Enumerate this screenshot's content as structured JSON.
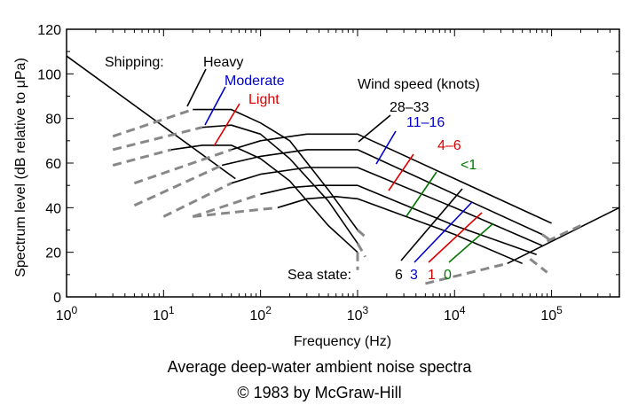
{
  "chart_data": {
    "type": "line",
    "title": "Average deep-water ambient noise spectra",
    "subtitle": "© 1983 by McGraw-Hill",
    "xlabel": "Frequency (Hz)",
    "ylabel": "Spectrum level (dB relative to μPa)",
    "x_scale": "log",
    "xlim": [
      1,
      500000
    ],
    "ylim": [
      0,
      120
    ],
    "x_ticks": [
      1,
      10,
      100,
      1000,
      10000,
      100000
    ],
    "x_tick_labels": [
      {
        "base": "10",
        "exp": "0"
      },
      {
        "base": "10",
        "exp": "1"
      },
      {
        "base": "10",
        "exp": "2"
      },
      {
        "base": "10",
        "exp": "3"
      },
      {
        "base": "10",
        "exp": "4"
      },
      {
        "base": "10",
        "exp": "5"
      }
    ],
    "y_ticks": [
      0,
      20,
      40,
      60,
      80,
      100,
      120
    ],
    "grid": false,
    "series": [
      {
        "name": "Heavy",
        "style": "solid",
        "color": "#000000",
        "x": [
          20,
          50,
          100,
          200,
          500,
          1000
        ],
        "y": [
          84,
          84,
          78,
          70,
          48,
          30
        ]
      },
      {
        "name": "Moderate",
        "style": "solid",
        "color": "#000000",
        "x": [
          25,
          50,
          100,
          200,
          500,
          1000
        ],
        "y": [
          76,
          77,
          73,
          62,
          43,
          24
        ]
      },
      {
        "name": "Light",
        "style": "solid",
        "color": "#000000",
        "x": [
          12,
          25,
          50,
          100,
          200,
          500,
          1000
        ],
        "y": [
          66,
          68,
          68,
          62,
          52,
          32,
          20
        ]
      },
      {
        "name": "28–33",
        "style": "solid",
        "color": "#000000",
        "x": [
          50,
          100,
          300,
          1000,
          10000,
          100000
        ],
        "y": [
          66,
          70,
          73,
          73,
          53,
          33
        ]
      },
      {
        "name": "11–16",
        "style": "solid",
        "color": "#000000",
        "x": [
          40,
          100,
          300,
          1000,
          10000,
          80000
        ],
        "y": [
          59,
          63,
          66,
          66,
          46,
          28
        ]
      },
      {
        "name": "4–6",
        "style": "solid",
        "color": "#000000",
        "x": [
          50,
          100,
          300,
          1000,
          10000,
          80000
        ],
        "y": [
          51,
          55,
          58,
          58,
          40,
          23
        ]
      },
      {
        "name": "<1",
        "style": "solid",
        "color": "#000000",
        "x": [
          100,
          200,
          400,
          1000,
          10000,
          70000
        ],
        "y": [
          46,
          49,
          50,
          50,
          32,
          19
        ]
      },
      {
        "name": "",
        "style": "solid",
        "color": "#000000",
        "x": [
          150,
          300,
          600,
          1000,
          10000,
          50000
        ],
        "y": [
          40,
          44,
          45,
          44,
          28,
          15
        ]
      },
      {
        "name": "",
        "style": "solid",
        "color": "#000000",
        "x": [
          1,
          55
        ],
        "y": [
          108,
          53
        ]
      },
      {
        "name": "",
        "style": "solid",
        "color": "#000000",
        "x": [
          35000,
          500000
        ],
        "y": [
          15,
          40
        ]
      },
      {
        "name": "",
        "style": "dashed",
        "color": "#888888",
        "x": [
          3,
          20
        ],
        "y": [
          72,
          84
        ]
      },
      {
        "name": "",
        "style": "dashed",
        "color": "#888888",
        "x": [
          3,
          25
        ],
        "y": [
          66,
          76
        ]
      },
      {
        "name": "",
        "style": "dashed",
        "color": "#888888",
        "x": [
          3,
          12
        ],
        "y": [
          59,
          66
        ]
      },
      {
        "name": "",
        "style": "dashed",
        "color": "#888888",
        "x": [
          5,
          50
        ],
        "y": [
          51,
          66
        ]
      },
      {
        "name": "",
        "style": "dashed",
        "color": "#888888",
        "x": [
          5,
          40
        ],
        "y": [
          41,
          59
        ]
      },
      {
        "name": "",
        "style": "dashed",
        "color": "#888888",
        "x": [
          10,
          50
        ],
        "y": [
          36,
          51
        ]
      },
      {
        "name": "",
        "style": "dashed",
        "color": "#888888",
        "x": [
          20,
          100
        ],
        "y": [
          36,
          46
        ]
      },
      {
        "name": "",
        "style": "dashed",
        "color": "#888888",
        "x": [
          20,
          150
        ],
        "y": [
          36,
          40
        ]
      },
      {
        "name": "",
        "style": "dashed",
        "color": "#888888",
        "x": [
          1000,
          1200
        ],
        "y": [
          30,
          27
        ]
      },
      {
        "name": "",
        "style": "dashed",
        "color": "#888888",
        "x": [
          1000,
          1200
        ],
        "y": [
          24,
          18
        ]
      },
      {
        "name": "",
        "style": "dashed",
        "color": "#888888",
        "x": [
          1000,
          1000
        ],
        "y": [
          20,
          12
        ]
      },
      {
        "name": "",
        "style": "dashed",
        "color": "#888888",
        "x": [
          90000,
          200000
        ],
        "y": [
          25,
          32
        ]
      },
      {
        "name": "",
        "style": "dashed",
        "color": "#888888",
        "x": [
          80000,
          100000
        ],
        "y": [
          28,
          25
        ]
      },
      {
        "name": "",
        "style": "dashed",
        "color": "#888888",
        "x": [
          60000,
          90000
        ],
        "y": [
          17,
          11
        ]
      },
      {
        "name": "",
        "style": "dashed",
        "color": "#888888",
        "x": [
          5000,
          35000
        ],
        "y": [
          6,
          15
        ]
      }
    ]
  },
  "annotations": {
    "shipping": "Shipping:",
    "heavy": "Heavy",
    "moderate": "Moderate",
    "light": "Light",
    "wind_speed": "Wind speed (knots)",
    "w1": "28–33",
    "w2": "11–16",
    "w3": "4–6",
    "w4": "<1",
    "sea_state": "Sea state:",
    "s6": "6",
    "s3": "3",
    "s1": "1",
    "s0": "0"
  },
  "colors": {
    "black": "#000000",
    "blue": "#0000cc",
    "red": "#dd0000",
    "green": "#007700",
    "dashed": "#888888"
  }
}
